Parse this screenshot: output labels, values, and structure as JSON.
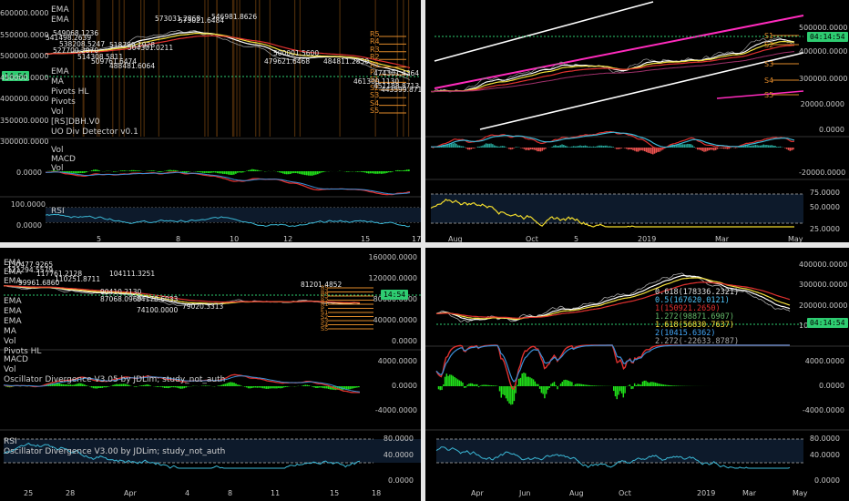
{
  "colors": {
    "price_tag": "#2ecc71",
    "ema_white": "#ffffff",
    "ema_yellow": "#f5e13c",
    "ema_red": "#e0312f",
    "macd_red": "#e0312f",
    "hist_green": "#21e21a",
    "rsi_cyan": "#3bb8d6",
    "rsi_yellow": "#f2dc2d",
    "trend_magenta": "#ff2bbd",
    "levels_orange": "#e08a2a"
  },
  "top_left": {
    "price_axis": [
      "600000.0000",
      "550000.0000",
      "500000.0000",
      "450000.0000",
      "400000.0000",
      "350000.0000",
      "300000.0000"
    ],
    "price_tag": "14:54",
    "legend": [
      "EMA",
      "EMA",
      "EMA",
      "MA",
      "Pivots HL",
      "Pivots",
      "Vol",
      "[RS]DBH.V0",
      "UO Div Detector v0.1"
    ],
    "levels": [
      "R5",
      "R4",
      "R3",
      "R2",
      "R1",
      "P",
      "S1",
      "S2",
      "S3",
      "S4",
      "S5"
    ],
    "macd_axis": [
      "0.0000"
    ],
    "macd_legend": [
      "Vol",
      "MACD",
      "Vol"
    ],
    "rsi_axis": [
      "100.0000",
      "0.0000"
    ],
    "rsi_legend": [
      "RSI"
    ],
    "x_ticks": [
      "5",
      "8",
      "10",
      "12",
      "15",
      "17"
    ],
    "pivot_labels": [
      "573031.2868",
      "573021.6484",
      "549068.1236",
      "546981.8626",
      "541498.2639",
      "538208.5247",
      "527700.2070",
      "518789.1928",
      "514308.5811",
      "509761.6474",
      "504301.0211",
      "500001.5600",
      "488481.6064",
      "484811.2850",
      "479621.6468",
      "474301.4364",
      "461300.1130",
      "451188.8713",
      "443599.8711"
    ]
  },
  "top_right": {
    "price_axis": [
      "500000.0000",
      "400000.0000",
      "300000.0000"
    ],
    "price_tag": "04:14:54",
    "levels": [
      "S1",
      "S2",
      "S3",
      "S4",
      "S5"
    ],
    "macd_axis": [
      "20000.0000",
      "0.0000",
      "-20000.0000"
    ],
    "rsi_axis": [
      "75.0000",
      "50.0000",
      "25.0000"
    ],
    "x_ticks": [
      "Aug",
      "Oct",
      "5",
      "2019",
      "Mar",
      "May"
    ]
  },
  "bottom_left": {
    "price_axis": [
      "160000.0000",
      "120000.0000",
      "80000.0000",
      "40000.0000",
      "0.0000"
    ],
    "price_tag": "14:54",
    "legend": [
      "EMA",
      "EMA",
      "EMA",
      "EMA",
      "EMA",
      "EMA",
      "MA",
      "Vol",
      "Pivots HL"
    ],
    "levels": [
      "R5",
      "R4",
      "R3",
      "R2",
      "R1",
      "P",
      "S1",
      "S2",
      "S3",
      "S4",
      "S5"
    ],
    "macd_axis": [
      "4000.0000",
      "0.0000",
      "-4000.0000"
    ],
    "macd_legend": [
      "MACD",
      "Vol",
      "Oscillator Divergence V3.05 by JDLim; study_not_auth"
    ],
    "rsi_axis": [
      "80.0000",
      "40.0000",
      "0.0000"
    ],
    "rsi_legend": [
      "RSI",
      "Oscillator Divergence V3.00 by JDLim; study_not_auth"
    ],
    "x_ticks": [
      "25",
      "28",
      "Apr",
      "4",
      "8",
      "11",
      "15",
      "18"
    ],
    "pivot_labels": [
      "130477.9265",
      "121294.5579",
      "117761.2128",
      "110251.8711",
      "104111.3251",
      "99961.6860",
      "90410.2130",
      "87068.0960",
      "84178.6033",
      "81201.4852",
      "79020.3313",
      "74100.0000"
    ]
  },
  "bottom_right": {
    "price_axis": [
      "400000.0000",
      "300000.0000",
      "200000.0000",
      "100000.0000"
    ],
    "price_tag": "04:14:54",
    "fib": [
      {
        "text": "0.618(178336.2321)",
        "color": "#e0e0e0"
      },
      {
        "text": "0.5(167620.0121)",
        "color": "#4fc3f7"
      },
      {
        "text": "1(150921.2650)",
        "color": "#e0312f"
      },
      {
        "text": "1.272(98871.6907)",
        "color": "#66bb6a"
      },
      {
        "text": "1.618(56830.7637)",
        "color": "#f5e13c"
      },
      {
        "text": "2(10415.6362)",
        "color": "#42a5f5"
      },
      {
        "text": "2.272(-22633.8787)",
        "color": "#aaaaaa"
      }
    ],
    "macd_axis": [
      "4000.0000",
      "0.0000",
      "-4000.0000"
    ],
    "rsi_axis": [
      "80.0000",
      "40.0000",
      "0.0000"
    ],
    "x_ticks": [
      "Apr",
      "Jun",
      "Aug",
      "Oct",
      "2019",
      "Mar",
      "May"
    ]
  }
}
